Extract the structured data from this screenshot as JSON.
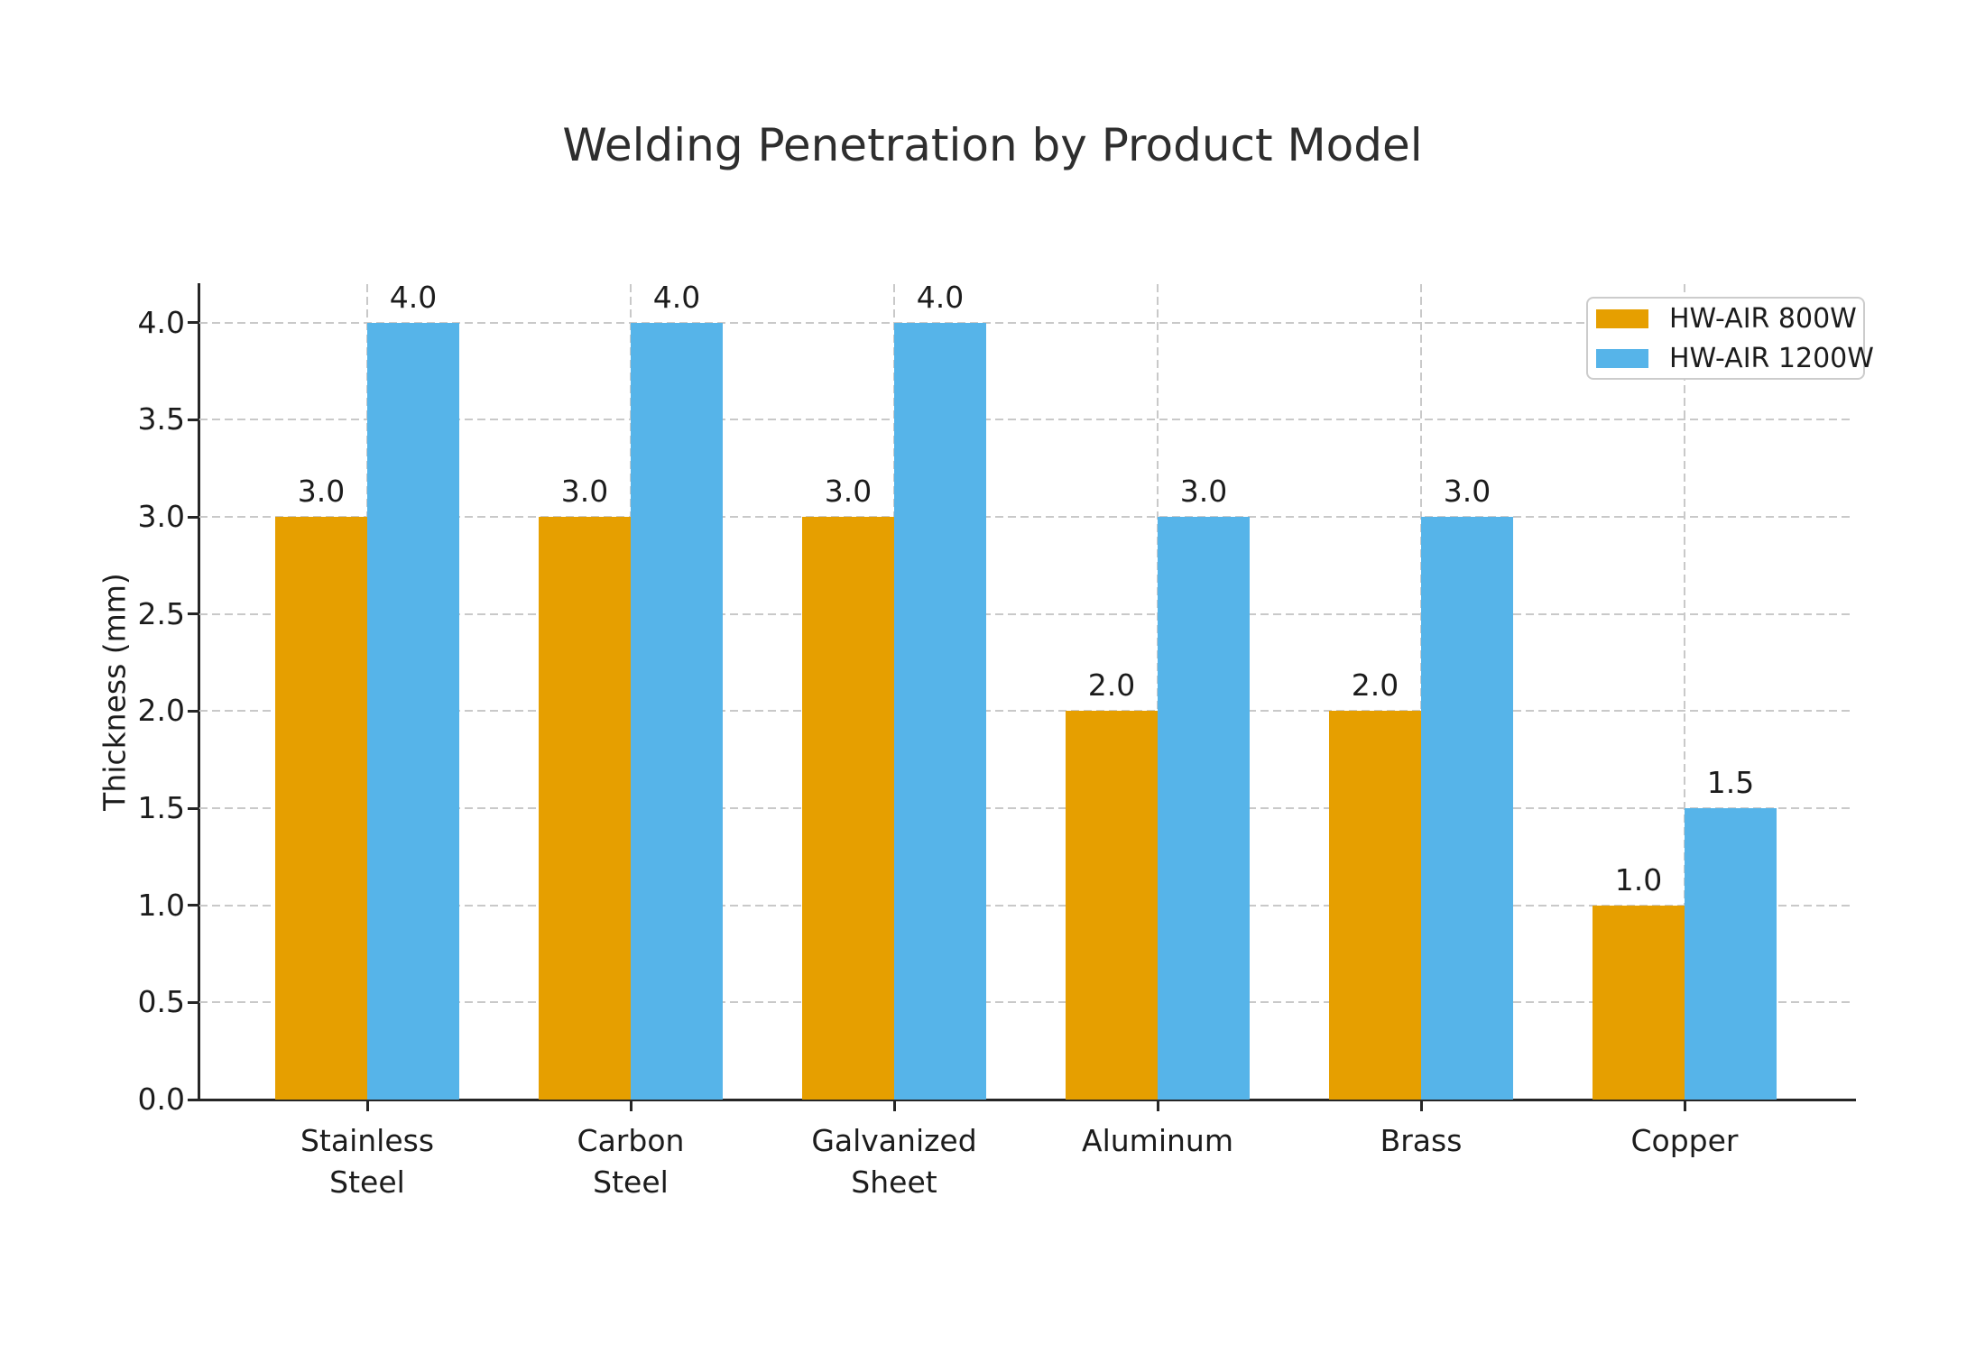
{
  "chart_data": {
    "type": "bar",
    "title": "Welding Penetration by Product Model",
    "xlabel": "",
    "ylabel": "Thickness (mm)",
    "categories": [
      "Stainless\nSteel",
      "Carbon\nSteel",
      "Galvanized\nSheet",
      "Aluminum",
      "Brass",
      "Copper"
    ],
    "series": [
      {
        "name": "HW-AIR 800W",
        "color": "#E69F00",
        "values": [
          3.0,
          3.0,
          3.0,
          2.0,
          2.0,
          1.0
        ]
      },
      {
        "name": "HW-AIR 1200W",
        "color": "#56B4E9",
        "values": [
          4.0,
          4.0,
          4.0,
          3.0,
          3.0,
          1.5
        ]
      }
    ],
    "ylim": [
      0,
      4.2
    ],
    "yticks": [
      "0.0",
      "0.5",
      "1.0",
      "1.5",
      "2.0",
      "2.5",
      "3.0",
      "3.5",
      "4.0"
    ],
    "bar_labels_decimals": 1,
    "grid": "dashed, horizontal and vertical",
    "legend_position": "upper right",
    "colors": {
      "grid": "#c9c9c9",
      "spine": "#262626",
      "text": "#1c1c1c",
      "title": "#2e2e2e",
      "legend_border": "#cccccc",
      "background": "#ffffff"
    }
  }
}
